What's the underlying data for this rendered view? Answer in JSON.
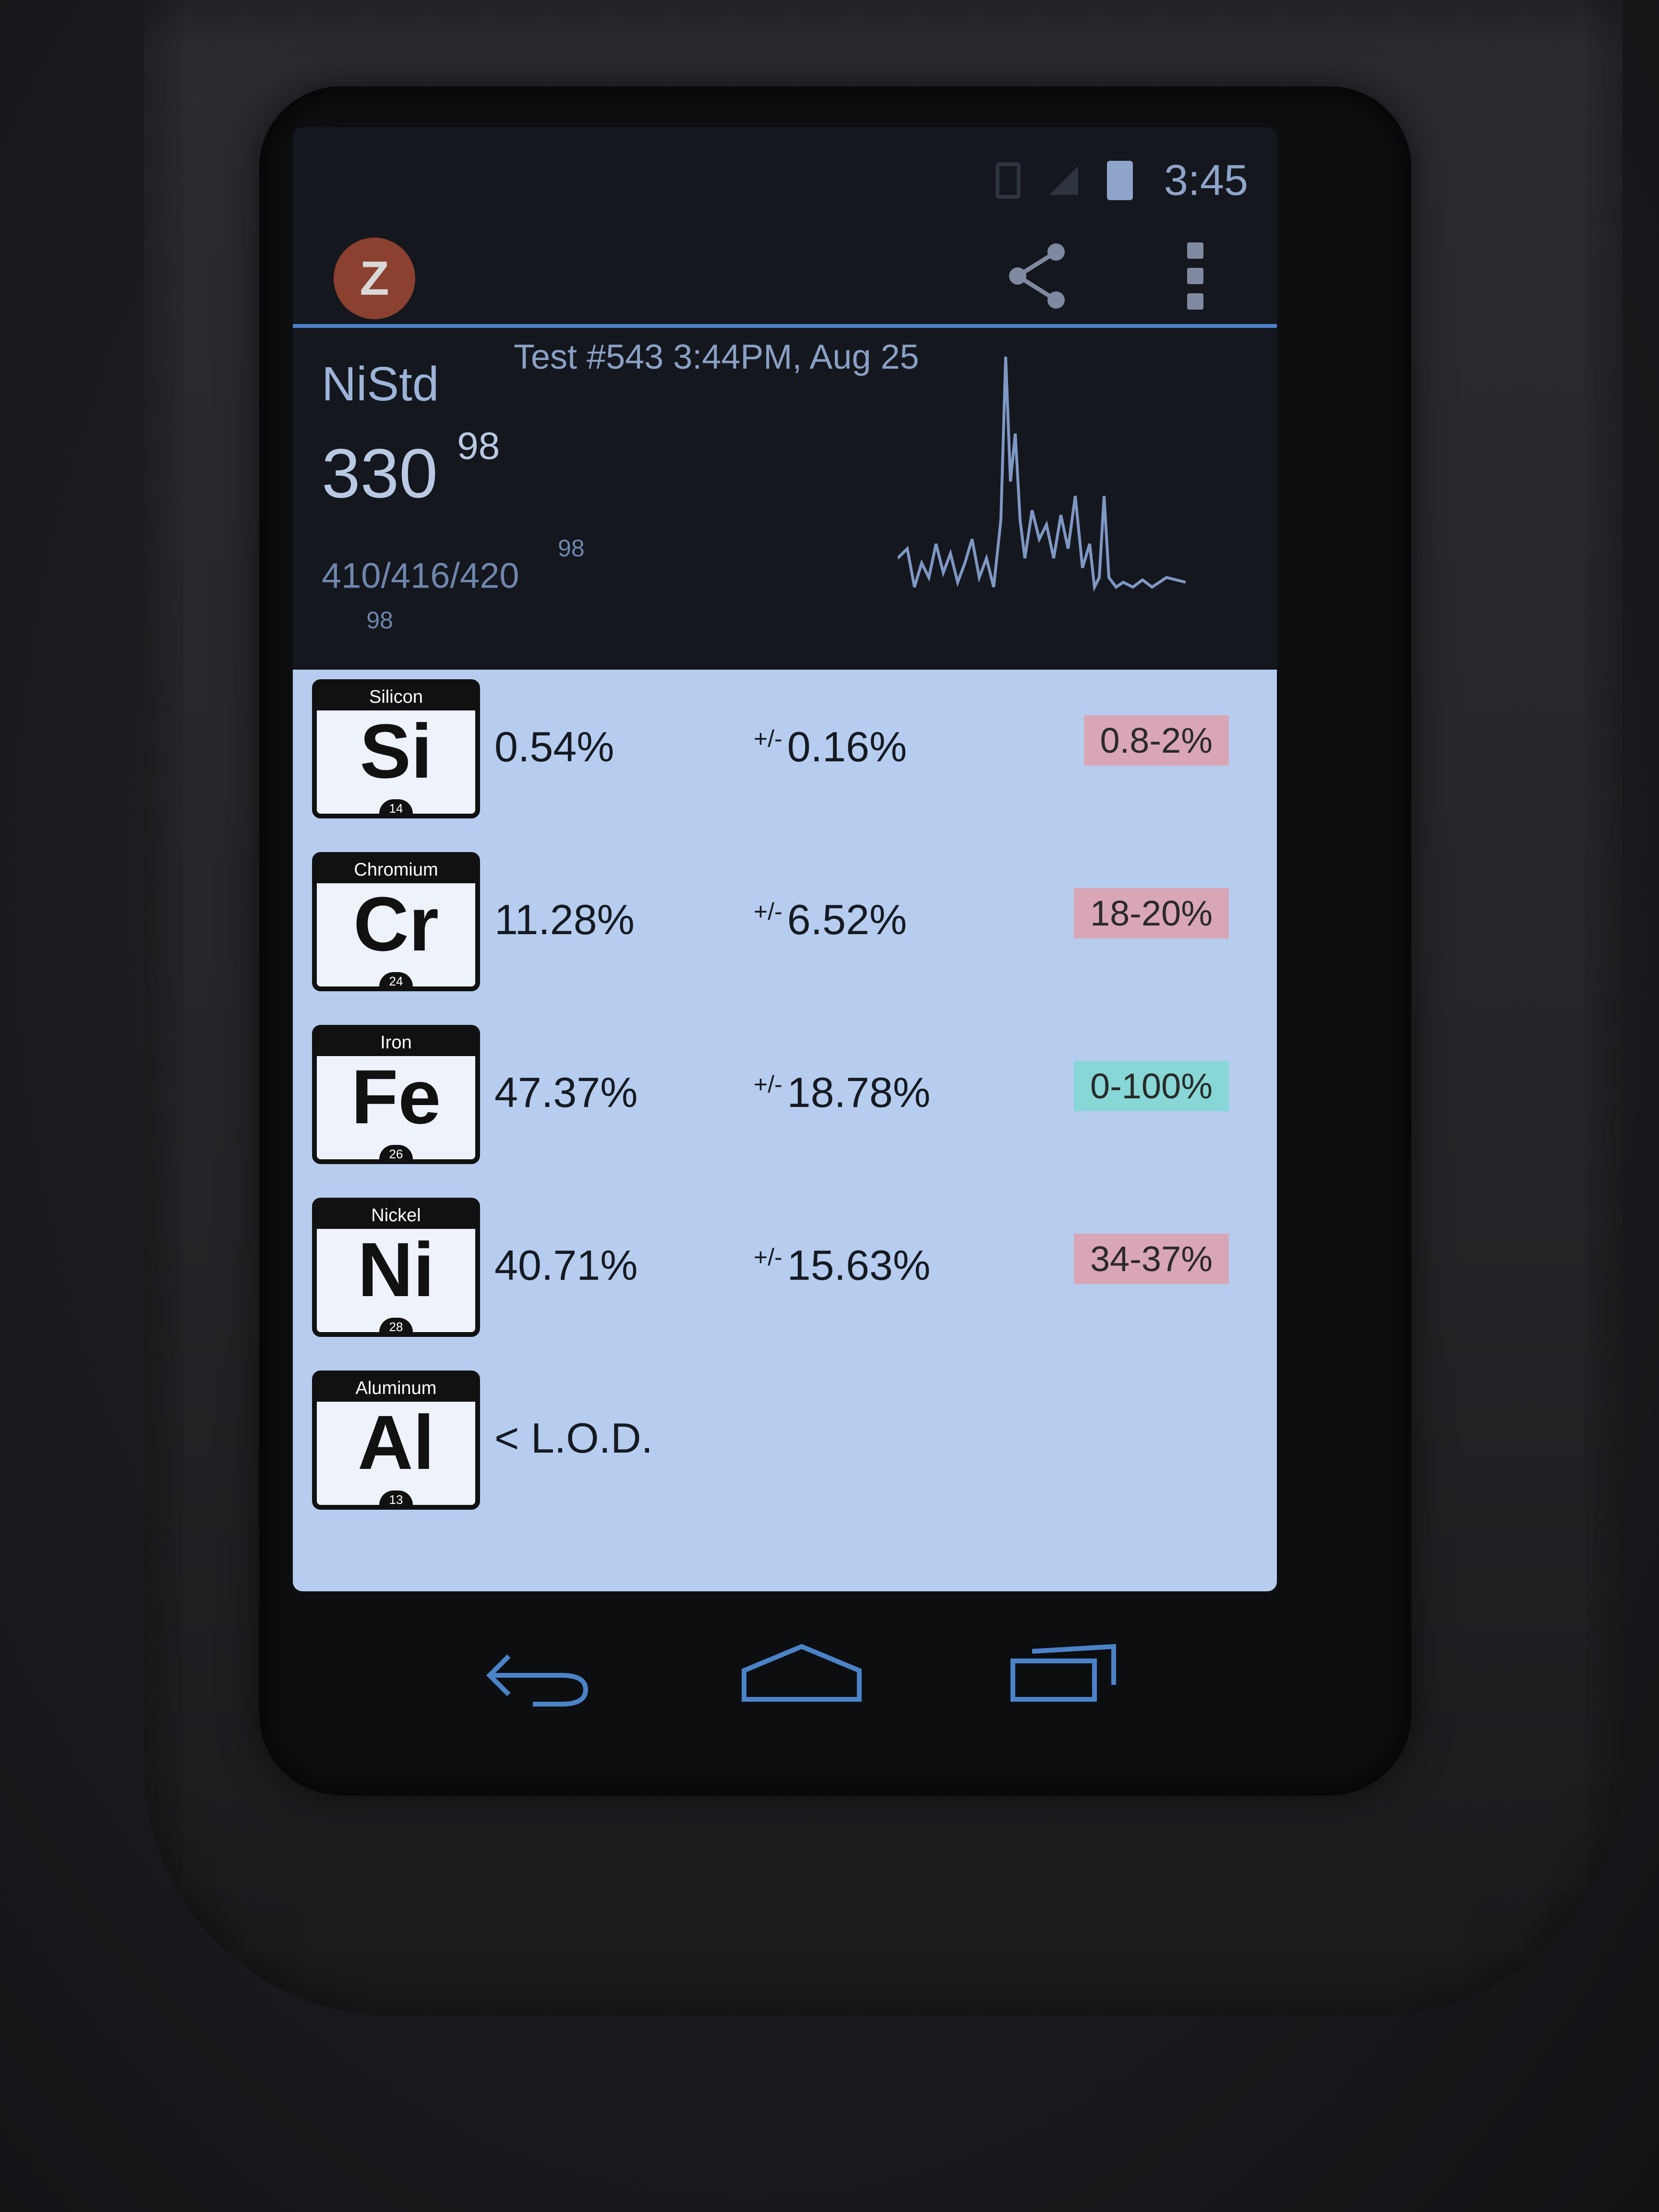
{
  "status_bar": {
    "time": "3:45"
  },
  "action_bar": {
    "logo_letter": "Z"
  },
  "summary": {
    "alloy_name": "NiStd",
    "test_info": "Test #543 3:44PM, Aug 25",
    "match_value": "330",
    "match_score": "98",
    "grades_line": "410/416/420",
    "grades_line_score": "98",
    "grades_line_2_score": "98"
  },
  "elements": [
    {
      "name": "Silicon",
      "symbol": "Si",
      "number": "14",
      "concentration": "0.54%",
      "error_prefix": "+/-",
      "error": "0.16%",
      "spec": "0.8-2%",
      "spec_status": "out"
    },
    {
      "name": "Chromium",
      "symbol": "Cr",
      "number": "24",
      "concentration": "11.28%",
      "error_prefix": "+/-",
      "error": "6.52%",
      "spec": "18-20%",
      "spec_status": "out"
    },
    {
      "name": "Iron",
      "symbol": "Fe",
      "number": "26",
      "concentration": "47.37%",
      "error_prefix": "+/-",
      "error": "18.78%",
      "spec": "0-100%",
      "spec_status": "in"
    },
    {
      "name": "Nickel",
      "symbol": "Ni",
      "number": "28",
      "concentration": "40.71%",
      "error_prefix": "+/-",
      "error": "15.63%",
      "spec": "34-37%",
      "spec_status": "out"
    },
    {
      "name": "Aluminum",
      "symbol": "Al",
      "number": "13",
      "concentration": "< L.O.D.",
      "error_prefix": "",
      "error": "",
      "spec": "",
      "spec_status": ""
    }
  ],
  "colors": {
    "accent": "#4b83c9",
    "list_bg": "#b7cdef",
    "spec_out": "#d9a6b6",
    "spec_in": "#86d7d5"
  },
  "icons": [
    "share-icon",
    "overflow-menu-icon",
    "back-icon",
    "home-icon",
    "recent-apps-icon",
    "battery-icon"
  ]
}
